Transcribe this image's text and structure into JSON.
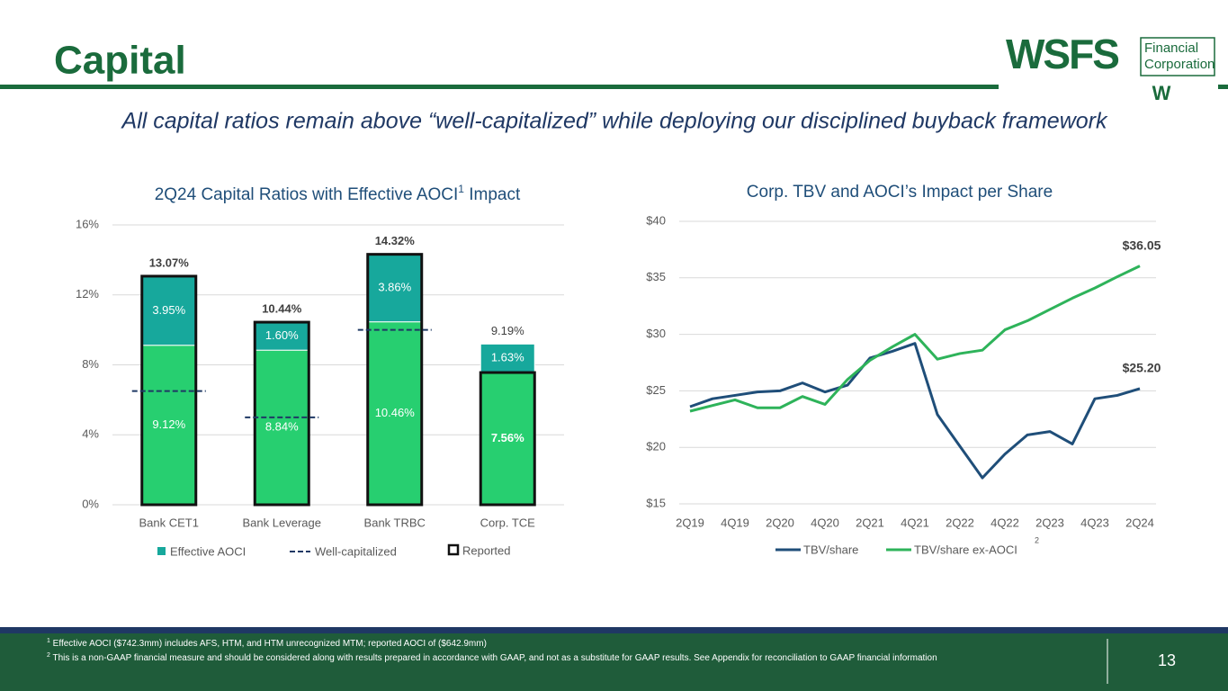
{
  "header": {
    "title": "Capital",
    "subtitle": "All capital ratios remain above “well-capitalized” while deploying our disciplined buyback framework"
  },
  "logo": {
    "mark": "WSFS",
    "line1": "Financial",
    "line2": "Corporation",
    "sub": "W"
  },
  "chart_data": [
    {
      "type": "bar",
      "title": "2Q24 Capital Ratios with Effective AOCI",
      "title_sup": "1",
      "title_end": " Impact",
      "categories": [
        "Bank CET1",
        "Bank Leverage",
        "Bank TRBC",
        "Corp. TCE"
      ],
      "series": [
        {
          "color": "#27cf70",
          "values": [
            9.12,
            8.84,
            10.46,
            7.56
          ],
          "value_labels": [
            "9.12%",
            "8.84%",
            "10.46%",
            "7.56%"
          ]
        },
        {
          "name": "Effective AOCI",
          "color": "#17a89c",
          "values": [
            3.95,
            1.6,
            3.86,
            1.63
          ],
          "value_labels": [
            "3.95%",
            "1.60%",
            "3.86%",
            "1.63%"
          ]
        }
      ],
      "totals": {
        "values": [
          13.07,
          10.44,
          14.32,
          9.19
        ],
        "value_labels": [
          "13.07%",
          "10.44%",
          "14.32%",
          "9.19%"
        ]
      },
      "reference": {
        "name": "Well-capitalized",
        "color": "#1f3864",
        "values": [
          6.5,
          5.0,
          10.0,
          null
        ]
      },
      "reported": {
        "name": "Reported",
        "color": "#111111",
        "values": [
          13.07,
          10.44,
          14.32,
          7.56
        ]
      },
      "ylim": [
        0,
        16
      ],
      "yticks": [
        {
          "value": 0,
          "label": "0%"
        },
        {
          "value": 4,
          "label": "4%"
        },
        {
          "value": 8,
          "label": "8%"
        },
        {
          "value": 12,
          "label": "12%"
        },
        {
          "value": 16,
          "label": "16%"
        }
      ],
      "grid": true
    },
    {
      "type": "line",
      "title": "Corp. TBV and AOCI’s Impact per Share",
      "categories": [
        "2Q19",
        null,
        "4Q19",
        null,
        "2Q20",
        null,
        "4Q20",
        null,
        "2Q21",
        null,
        "4Q21",
        null,
        "2Q22",
        null,
        "4Q22",
        null,
        "2Q23",
        null,
        "4Q23",
        null,
        "2Q24"
      ],
      "series": [
        {
          "name": "TBV/share",
          "color": "#1f4e79",
          "values": [
            23.6,
            24.3,
            24.6,
            24.9,
            25.0,
            25.7,
            24.9,
            25.5,
            27.9,
            28.5,
            29.2,
            22.9,
            20.1,
            17.3,
            19.4,
            21.1,
            21.4,
            20.3,
            24.3,
            24.6,
            25.2
          ],
          "value_labels": [
            null,
            null,
            null,
            null,
            null,
            null,
            null,
            null,
            null,
            null,
            null,
            null,
            null,
            null,
            null,
            null,
            null,
            null,
            null,
            null,
            "$25.20"
          ]
        },
        {
          "name": "TBV/share ex-AOCI",
          "name_sup": "2",
          "color": "#2eb35a",
          "values": [
            23.2,
            23.7,
            24.2,
            23.5,
            23.5,
            24.5,
            23.8,
            26.0,
            27.7,
            28.9,
            30.0,
            27.8,
            28.3,
            28.6,
            30.4,
            31.2,
            32.2,
            33.2,
            34.1,
            35.1,
            36.05
          ],
          "value_labels": [
            null,
            null,
            null,
            null,
            null,
            null,
            null,
            null,
            null,
            null,
            null,
            null,
            null,
            null,
            null,
            null,
            null,
            null,
            null,
            null,
            "$36.05"
          ]
        }
      ],
      "ylim": [
        15,
        40
      ],
      "yticks": [
        {
          "value": 15,
          "label": "$15"
        },
        {
          "value": 20,
          "label": "$20"
        },
        {
          "value": 25,
          "label": "$25"
        },
        {
          "value": 30,
          "label": "$30"
        },
        {
          "value": 35,
          "label": "$35"
        },
        {
          "value": 40,
          "label": "$40"
        }
      ],
      "grid": true
    }
  ],
  "footer": {
    "notes": [
      {
        "marker": "1",
        "text": " Effective AOCI ($742.3mm) includes AFS, HTM, and HTM unrecognized MTM; reported AOCI of ($642.9mm)"
      },
      {
        "marker": "2",
        "text": " This is a non-GAAP financial measure and should be considered along with results prepared in accordance with GAAP, and not as a substitute for GAAP results.  See Appendix for reconciliation to GAAP financial information"
      }
    ],
    "page": "13"
  }
}
